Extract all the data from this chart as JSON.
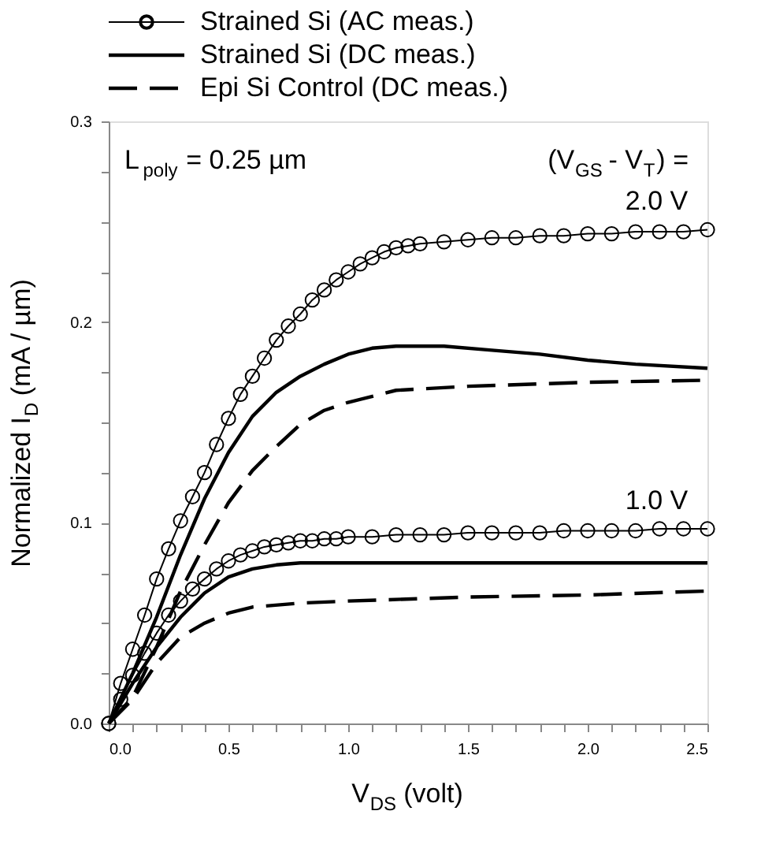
{
  "chart_data": {
    "type": "line",
    "xlabel": "V$_{DS}$ (volt)",
    "ylabel": "Normalized I$_{D}$ (mA / µm)",
    "xlim": [
      0,
      2.5
    ],
    "ylim": [
      0,
      0.3
    ],
    "xticks": [
      {
        "value": 0,
        "label": "0.0"
      },
      {
        "value": 0.1,
        "label": null
      },
      {
        "value": 0.2,
        "label": null
      },
      {
        "value": 0.3,
        "label": null
      },
      {
        "value": 0.4,
        "label": null
      },
      {
        "value": 0.5,
        "label": "0.5"
      },
      {
        "value": 0.6,
        "label": null
      },
      {
        "value": 0.7,
        "label": null
      },
      {
        "value": 0.8,
        "label": null
      },
      {
        "value": 0.9,
        "label": null
      },
      {
        "value": 1.0,
        "label": "1.0"
      },
      {
        "value": 1.1,
        "label": null
      },
      {
        "value": 1.2,
        "label": null
      },
      {
        "value": 1.3,
        "label": null
      },
      {
        "value": 1.4,
        "label": null
      },
      {
        "value": 1.5,
        "label": "1.5"
      },
      {
        "value": 1.6,
        "label": null
      },
      {
        "value": 1.7,
        "label": null
      },
      {
        "value": 1.8,
        "label": null
      },
      {
        "value": 1.9,
        "label": null
      },
      {
        "value": 2.0,
        "label": "2.0"
      },
      {
        "value": 2.1,
        "label": null
      },
      {
        "value": 2.2,
        "label": null
      },
      {
        "value": 2.3,
        "label": null
      },
      {
        "value": 2.4,
        "label": null
      },
      {
        "value": 2.5,
        "label": "2.5"
      }
    ],
    "yticks": [
      {
        "value": 0,
        "label": "0.0"
      },
      {
        "value": 0.025,
        "label": null
      },
      {
        "value": 0.05,
        "label": null
      },
      {
        "value": 0.075,
        "label": null
      },
      {
        "value": 0.1,
        "label": "0.1"
      },
      {
        "value": 0.125,
        "label": null
      },
      {
        "value": 0.15,
        "label": null
      },
      {
        "value": 0.175,
        "label": null
      },
      {
        "value": 0.2,
        "label": "0.2"
      },
      {
        "value": 0.225,
        "label": null
      },
      {
        "value": 0.25,
        "label": null
      },
      {
        "value": 0.275,
        "label": null
      },
      {
        "value": 0.3,
        "label": "0.3"
      }
    ],
    "legend": "top",
    "series": [
      {
        "name": "Strained Si (AC meas.)",
        "color": "#000000",
        "marker": "circle",
        "line_style": "solid",
        "x": [
          0,
          0.05,
          0.1,
          0.15,
          0.2,
          0.25,
          0.3,
          0.35,
          0.4,
          0.45,
          0.5,
          0.55,
          0.6,
          0.65,
          0.7,
          0.75,
          0.8,
          0.85,
          0.9,
          0.95,
          1.0,
          1.05,
          1.1,
          1.15,
          1.2,
          1.25,
          1.3,
          1.4,
          1.5,
          1.6,
          1.7,
          1.8,
          1.9,
          2.0,
          2.1,
          2.2,
          2.3,
          2.4,
          2.5
        ],
        "values": [
          0,
          0.02,
          0.037,
          0.054,
          0.072,
          0.087,
          0.101,
          0.113,
          0.125,
          0.139,
          0.152,
          0.164,
          0.173,
          0.182,
          0.191,
          0.198,
          0.204,
          0.211,
          0.216,
          0.221,
          0.225,
          0.229,
          0.232,
          0.235,
          0.237,
          0.238,
          0.239,
          0.24,
          0.241,
          0.242,
          0.242,
          0.243,
          0.243,
          0.244,
          0.244,
          0.245,
          0.245,
          0.245,
          0.246
        ]
      },
      {
        "name": "Strained Si (DC meas.)",
        "color": "#000000",
        "marker": "none",
        "line_style": "solid",
        "x": [
          0,
          0.1,
          0.2,
          0.3,
          0.4,
          0.5,
          0.6,
          0.7,
          0.8,
          0.9,
          1.0,
          1.1,
          1.2,
          1.3,
          1.4,
          1.6,
          1.8,
          2.0,
          2.2,
          2.5
        ],
        "values": [
          0,
          0.025,
          0.053,
          0.084,
          0.112,
          0.135,
          0.153,
          0.165,
          0.173,
          0.179,
          0.184,
          0.187,
          0.188,
          0.188,
          0.188,
          0.186,
          0.184,
          0.181,
          0.179,
          0.177
        ]
      },
      {
        "name": "Epi Si Control (DC meas.)",
        "color": "#000000",
        "marker": "none",
        "line_style": "dashed",
        "x": [
          0,
          0.1,
          0.2,
          0.3,
          0.4,
          0.5,
          0.6,
          0.7,
          0.8,
          0.9,
          1.0,
          1.2,
          1.5,
          2.0,
          2.5
        ],
        "values": [
          0,
          0.013,
          0.038,
          0.066,
          0.089,
          0.11,
          0.126,
          0.138,
          0.149,
          0.156,
          0.16,
          0.166,
          0.168,
          0.17,
          0.171
        ]
      },
      {
        "color": "#000000",
        "marker": "circle",
        "line_style": "solid",
        "x": [
          0,
          0.05,
          0.1,
          0.15,
          0.2,
          0.25,
          0.3,
          0.35,
          0.4,
          0.45,
          0.5,
          0.55,
          0.6,
          0.65,
          0.7,
          0.75,
          0.8,
          0.85,
          0.9,
          0.95,
          1.0,
          1.1,
          1.2,
          1.3,
          1.4,
          1.5,
          1.6,
          1.7,
          1.8,
          1.9,
          2.0,
          2.1,
          2.2,
          2.3,
          2.4,
          2.5
        ],
        "values": [
          0,
          0.012,
          0.024,
          0.035,
          0.045,
          0.054,
          0.061,
          0.067,
          0.072,
          0.077,
          0.081,
          0.084,
          0.086,
          0.088,
          0.089,
          0.09,
          0.091,
          0.091,
          0.092,
          0.092,
          0.093,
          0.093,
          0.094,
          0.094,
          0.094,
          0.095,
          0.095,
          0.095,
          0.095,
          0.096,
          0.096,
          0.096,
          0.096,
          0.097,
          0.097,
          0.097
        ]
      },
      {
        "color": "#000000",
        "marker": "none",
        "line_style": "solid",
        "x": [
          0,
          0.1,
          0.2,
          0.3,
          0.4,
          0.5,
          0.6,
          0.7,
          0.8,
          1.0,
          2.5
        ],
        "values": [
          0,
          0.02,
          0.038,
          0.053,
          0.065,
          0.073,
          0.077,
          0.079,
          0.08,
          0.08,
          0.08
        ]
      },
      {
        "color": "#000000",
        "marker": "none",
        "line_style": "dashed",
        "x": [
          0,
          0.1,
          0.2,
          0.3,
          0.4,
          0.5,
          0.6,
          0.8,
          1.0,
          1.5,
          2.0,
          2.5
        ],
        "values": [
          0,
          0.012,
          0.03,
          0.043,
          0.05,
          0.055,
          0.058,
          0.06,
          0.061,
          0.063,
          0.064,
          0.066
        ]
      }
    ],
    "annotations": [
      "L$_{poly}$ = 0.25 µm",
      "(V$_{GS}$ - V$_{T}$) =",
      "2.0 V",
      "1.0 V"
    ]
  }
}
